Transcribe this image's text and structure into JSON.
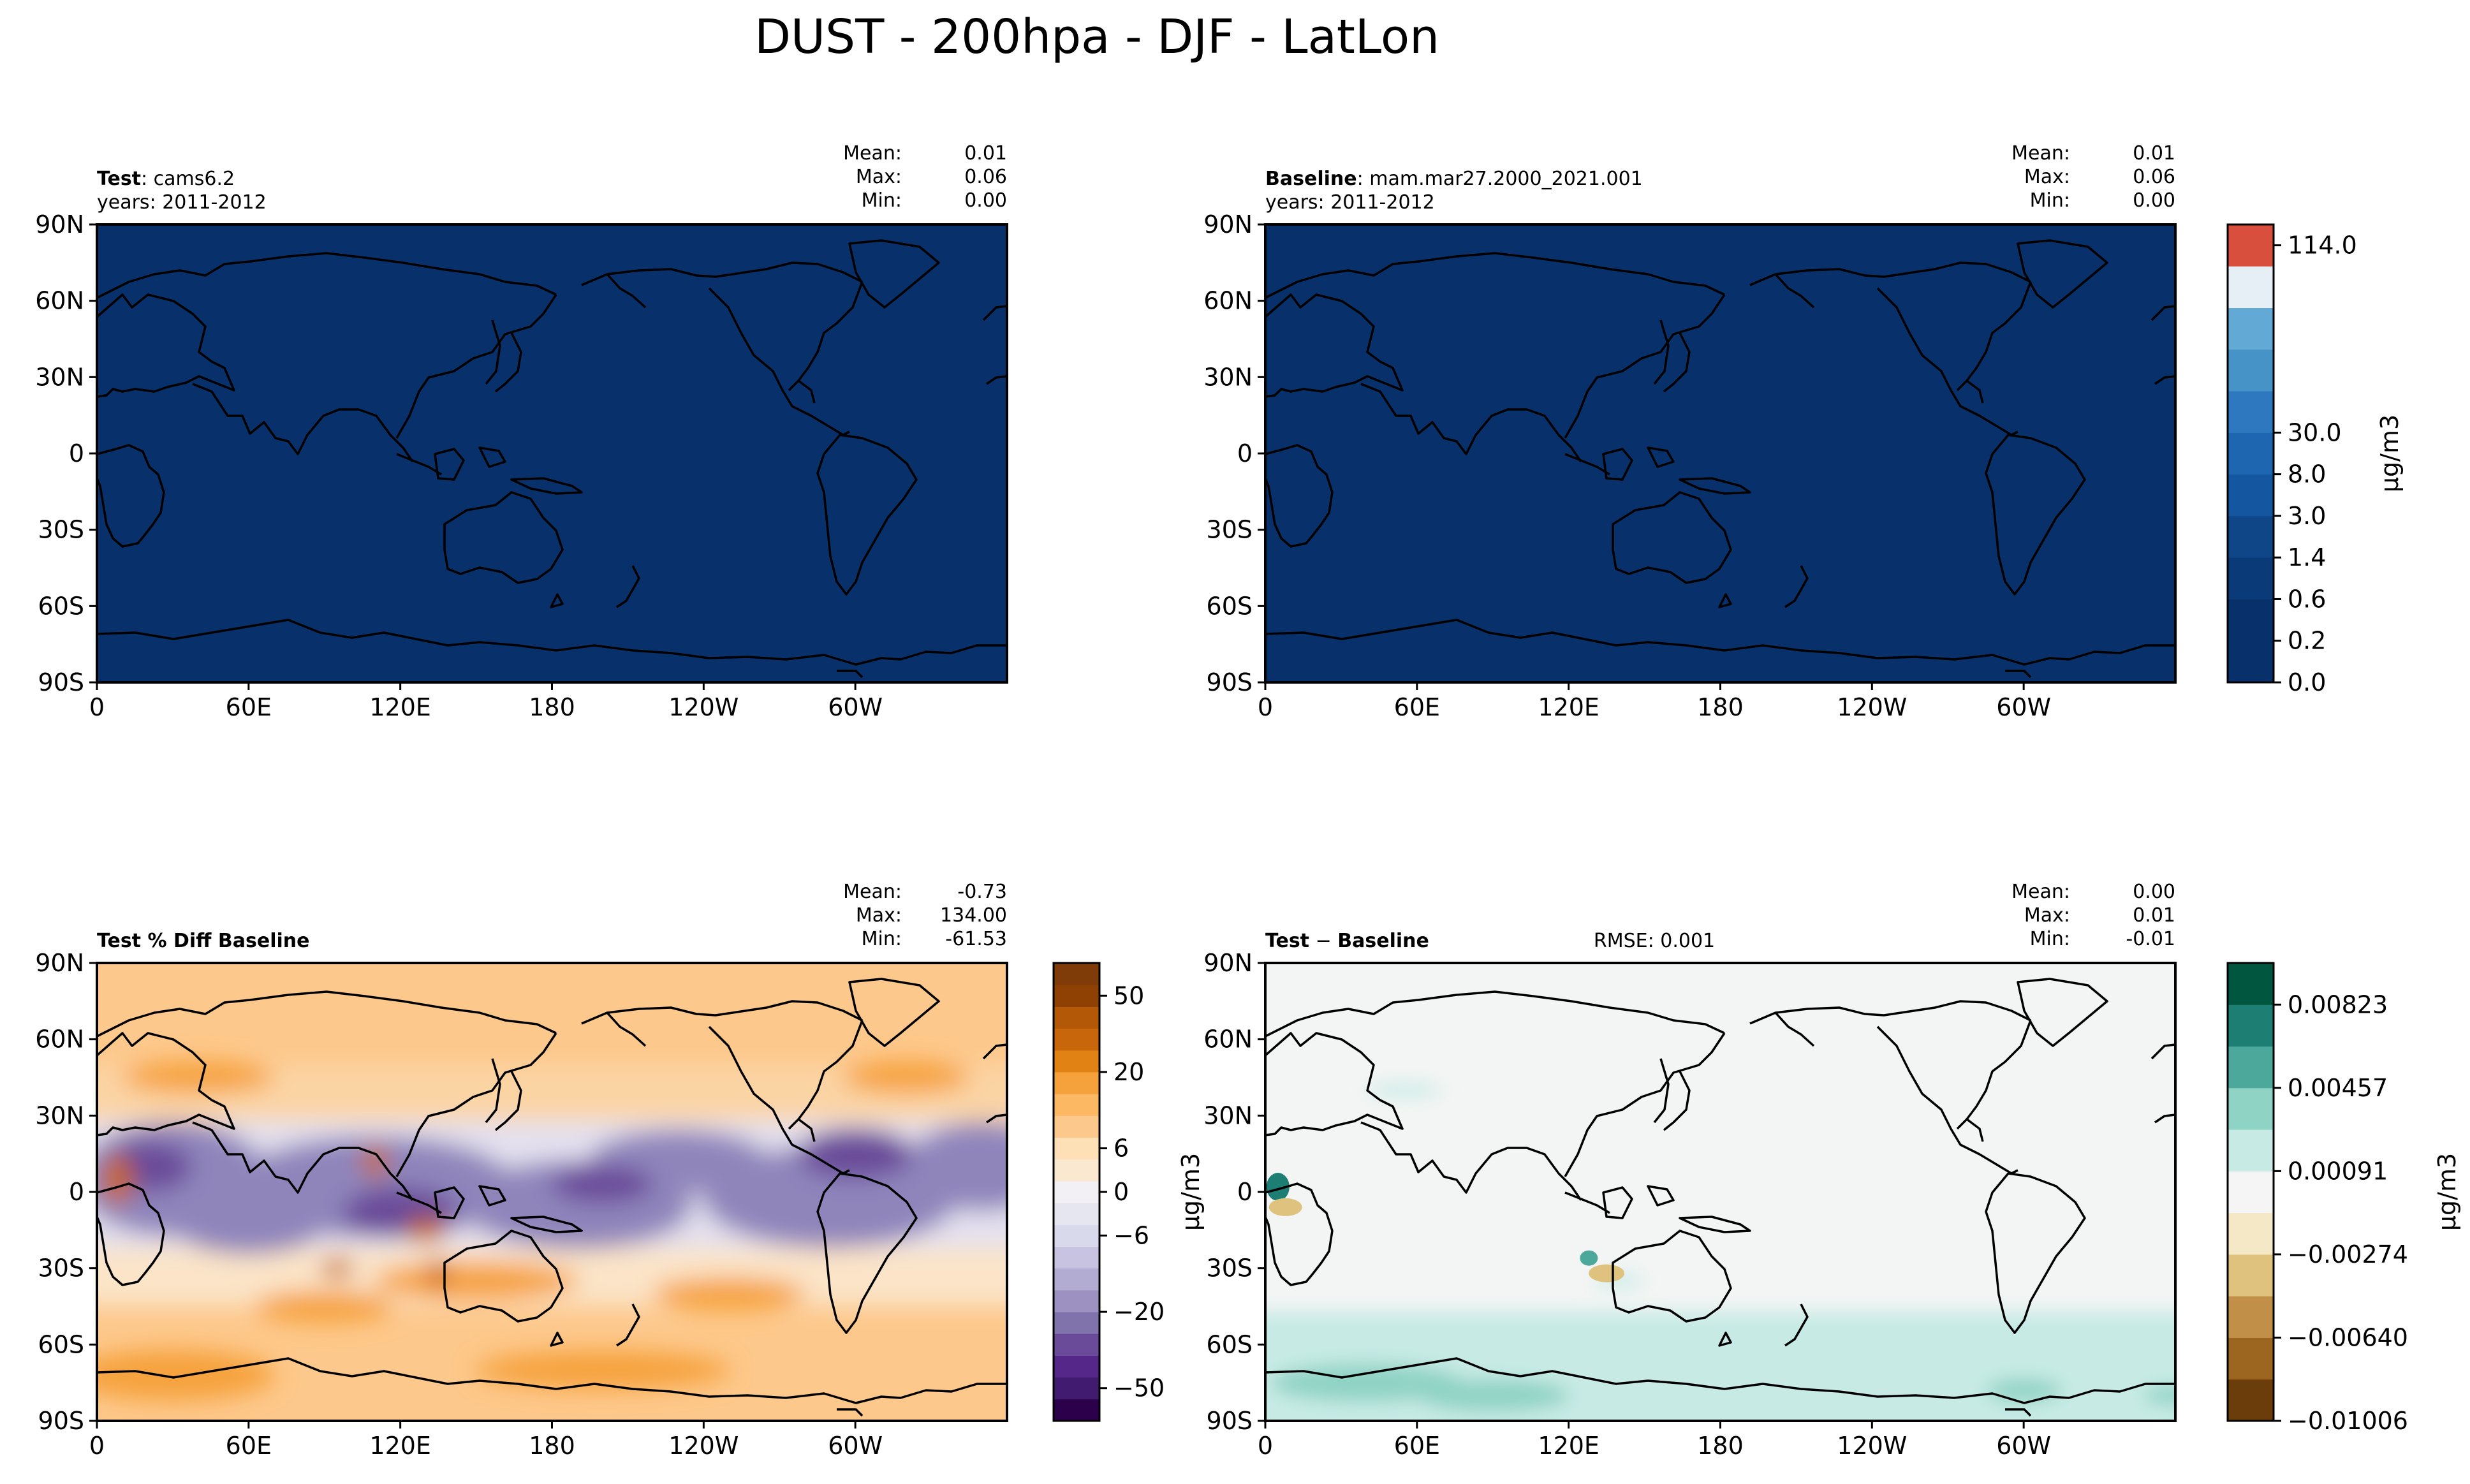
{
  "figure_title": "DUST - 200hpa - DJF - LatLon",
  "longitude_ticks": [
    "0",
    "60E",
    "120E",
    "180",
    "120W",
    "60W"
  ],
  "latitude_ticks": [
    "90N",
    "60N",
    "30N",
    "0",
    "30S",
    "60S",
    "90S"
  ],
  "panels": [
    {
      "id": "test",
      "title_bold": "Test",
      "title_rest": ": cams6.2",
      "subtitle": "years: 2011-2012",
      "stats": {
        "mean_label": "Mean:",
        "mean": "0.01",
        "max_label": "Max:",
        "max": "0.06",
        "min_label": "Min:",
        "min": "0.00"
      },
      "fill_color": "#08306b"
    },
    {
      "id": "baseline",
      "title_bold": "Baseline",
      "title_rest": ": mam.mar27.2000_2021.001",
      "subtitle": "years: 2011-2012",
      "stats": {
        "mean_label": "Mean:",
        "mean": "0.01",
        "max_label": "Max:",
        "max": "0.06",
        "min_label": "Min:",
        "min": "0.00"
      },
      "fill_color": "#08306b"
    },
    {
      "id": "pct_diff",
      "title_bold": "Test % Diff Baseline",
      "stats": {
        "mean_label": "Mean:",
        "mean": "-0.73",
        "max_label": "Max:",
        "max": "134.00",
        "min_label": "Min:",
        "min": "-61.53"
      }
    },
    {
      "id": "diff",
      "title_bold": "Test",
      "title_sep": "−",
      "title_bold2": "Baseline",
      "rmse": "RMSE: 0.001",
      "stats": {
        "mean_label": "Mean:",
        "mean": "0.00",
        "max_label": "Max:",
        "max": "0.01",
        "min_label": "Min:",
        "min": "-0.01"
      }
    }
  ],
  "colorbars": [
    {
      "id": "main",
      "label": "μg/m3",
      "tick_labels": [
        "0.0",
        "0.2",
        "0.6",
        "1.4",
        "3.0",
        "8.0",
        "30.0",
        "114.0"
      ],
      "colors": [
        "#08306b",
        "#08306b",
        "#0b3a78",
        "#0e4688",
        "#1457a0",
        "#1f66b0",
        "#2e78bf",
        "#4693c8",
        "#62a9d6",
        "#e6eef6",
        "#d94f3d"
      ]
    },
    {
      "id": "pct",
      "label": "μg/m3",
      "tick_labels": [
        "−50",
        "−20",
        "−6",
        "0",
        "6",
        "20",
        "50"
      ],
      "colors": [
        "#2d004b",
        "#411b6f",
        "#542788",
        "#6a4b9a",
        "#8073ac",
        "#9c91c1",
        "#b2abd2",
        "#c8c3e0",
        "#d8daeb",
        "#e6e6f1",
        "#f2f0f5",
        "#fbe8d0",
        "#fee0b6",
        "#fdc88b",
        "#fdb863",
        "#f6a23c",
        "#e08214",
        "#c7660b",
        "#b35806",
        "#8f4104",
        "#7f3b08"
      ]
    },
    {
      "id": "diff",
      "label": "μg/m3",
      "tick_labels": [
        "−0.01006",
        "−0.00640",
        "−0.00274",
        "0.00091",
        "0.00457",
        "0.00823"
      ],
      "colors": [
        "#6b3d0a",
        "#9c6520",
        "#c18f47",
        "#dfc27d",
        "#f5e8c6",
        "#f5f5f5",
        "#c7eae5",
        "#8fd3c4",
        "#4ba89b",
        "#1d7f73",
        "#01563f"
      ]
    }
  ],
  "chart_data": [
    {
      "type": "heatmap",
      "panel": "test",
      "title": "Test : cams6.2",
      "xlim": [
        0,
        360
      ],
      "ylim": [
        -90,
        90
      ],
      "field": "DUST 200hpa DJF",
      "units": "μg/m3",
      "mean": 0.01,
      "max": 0.06,
      "min": 0.0
    },
    {
      "type": "heatmap",
      "panel": "baseline",
      "title": "Baseline : mam.mar27.2000_2021.001",
      "xlim": [
        0,
        360
      ],
      "ylim": [
        -90,
        90
      ],
      "field": "DUST 200hpa DJF",
      "units": "μg/m3",
      "mean": 0.01,
      "max": 0.06,
      "min": 0.0
    },
    {
      "type": "heatmap",
      "panel": "pct_diff",
      "title": "Test % Diff Baseline",
      "xlim": [
        0,
        360
      ],
      "ylim": [
        -90,
        90
      ],
      "mean": -0.73,
      "max": 134.0,
      "min": -61.53
    },
    {
      "type": "heatmap",
      "panel": "diff",
      "title": "Test − Baseline",
      "xlim": [
        0,
        360
      ],
      "ylim": [
        -90,
        90
      ],
      "rmse": 0.001,
      "mean": 0.0,
      "max": 0.01,
      "min": -0.01
    }
  ]
}
